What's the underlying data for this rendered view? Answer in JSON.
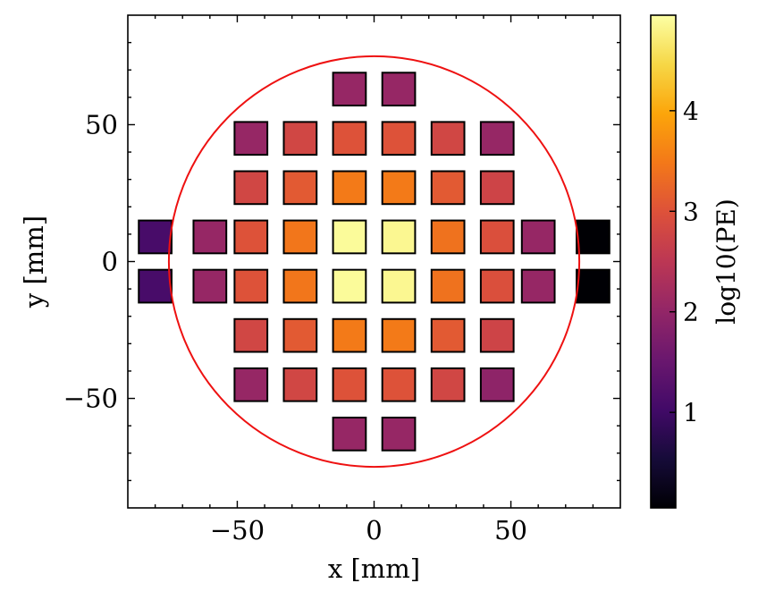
{
  "chart_data": {
    "type": "heatmap",
    "title": "",
    "xlabel": "x [mm]",
    "ylabel": "y [mm]",
    "xlim": [
      -90,
      90
    ],
    "ylim": [
      -90,
      90
    ],
    "x_ticks": [
      {
        "value": -50,
        "label": "−50"
      },
      {
        "value": 0,
        "label": "0"
      },
      {
        "value": 50,
        "label": "50"
      }
    ],
    "y_ticks": [
      {
        "value": -50,
        "label": "−50"
      },
      {
        "value": 0,
        "label": "0"
      },
      {
        "value": 50,
        "label": "50"
      }
    ],
    "minor_tick_step": 10,
    "grid": false,
    "sensor_size_mm": 12,
    "circle": {
      "center": [
        0,
        0
      ],
      "radius": 75,
      "color": "#ee1111"
    },
    "colorbar": {
      "label": "log10(PE)",
      "colormap": "inferno",
      "range": [
        0.05,
        4.95
      ],
      "ticks": [
        {
          "value": 1,
          "label": "1"
        },
        {
          "value": 2,
          "label": "2"
        },
        {
          "value": 3,
          "label": "3"
        },
        {
          "value": 4,
          "label": "4"
        }
      ]
    },
    "sensors": [
      {
        "x": -80,
        "y": 9,
        "value": 1.1
      },
      {
        "x": -60,
        "y": 9,
        "value": 2.05
      },
      {
        "x": -45,
        "y": 9,
        "value": 3.0
      },
      {
        "x": -27,
        "y": 9,
        "value": 3.45
      },
      {
        "x": -9,
        "y": 9,
        "value": 4.9
      },
      {
        "x": 9,
        "y": 9,
        "value": 4.85
      },
      {
        "x": 27,
        "y": 9,
        "value": 3.4
      },
      {
        "x": 45,
        "y": 9,
        "value": 2.95
      },
      {
        "x": 60,
        "y": 9,
        "value": 2.05
      },
      {
        "x": 80,
        "y": 9,
        "value": 0.05
      },
      {
        "x": -80,
        "y": -9,
        "value": 1.1
      },
      {
        "x": -60,
        "y": -9,
        "value": 2.05
      },
      {
        "x": -45,
        "y": -9,
        "value": 3.0
      },
      {
        "x": -27,
        "y": -9,
        "value": 3.45
      },
      {
        "x": -9,
        "y": -9,
        "value": 4.9
      },
      {
        "x": 9,
        "y": -9,
        "value": 4.85
      },
      {
        "x": 27,
        "y": -9,
        "value": 3.4
      },
      {
        "x": 45,
        "y": -9,
        "value": 2.95
      },
      {
        "x": 60,
        "y": -9,
        "value": 2.05
      },
      {
        "x": 80,
        "y": -9,
        "value": 0.05
      },
      {
        "x": -9,
        "y": 63,
        "value": 2.05
      },
      {
        "x": 9,
        "y": 63,
        "value": 2.05
      },
      {
        "x": -45,
        "y": 45,
        "value": 2.05
      },
      {
        "x": -27,
        "y": 45,
        "value": 2.8
      },
      {
        "x": -9,
        "y": 45,
        "value": 3.0
      },
      {
        "x": 9,
        "y": 45,
        "value": 3.0
      },
      {
        "x": 27,
        "y": 45,
        "value": 2.8
      },
      {
        "x": 45,
        "y": 45,
        "value": 2.05
      },
      {
        "x": -45,
        "y": 27,
        "value": 2.8
      },
      {
        "x": -27,
        "y": 27,
        "value": 3.1
      },
      {
        "x": -9,
        "y": 27,
        "value": 3.5
      },
      {
        "x": 9,
        "y": 27,
        "value": 3.5
      },
      {
        "x": 27,
        "y": 27,
        "value": 3.1
      },
      {
        "x": 45,
        "y": 27,
        "value": 2.75
      },
      {
        "x": -45,
        "y": -27,
        "value": 2.8
      },
      {
        "x": -27,
        "y": -27,
        "value": 3.1
      },
      {
        "x": -9,
        "y": -27,
        "value": 3.5
      },
      {
        "x": 9,
        "y": -27,
        "value": 3.5
      },
      {
        "x": 27,
        "y": -27,
        "value": 3.1
      },
      {
        "x": 45,
        "y": -27,
        "value": 2.75
      },
      {
        "x": -45,
        "y": -45,
        "value": 2.05
      },
      {
        "x": -27,
        "y": -45,
        "value": 2.8
      },
      {
        "x": -9,
        "y": -45,
        "value": 3.0
      },
      {
        "x": 9,
        "y": -45,
        "value": 3.0
      },
      {
        "x": 27,
        "y": -45,
        "value": 2.8
      },
      {
        "x": 45,
        "y": -45,
        "value": 1.95
      },
      {
        "x": -9,
        "y": -63,
        "value": 2.05
      },
      {
        "x": 9,
        "y": -63,
        "value": 2.05
      }
    ]
  }
}
